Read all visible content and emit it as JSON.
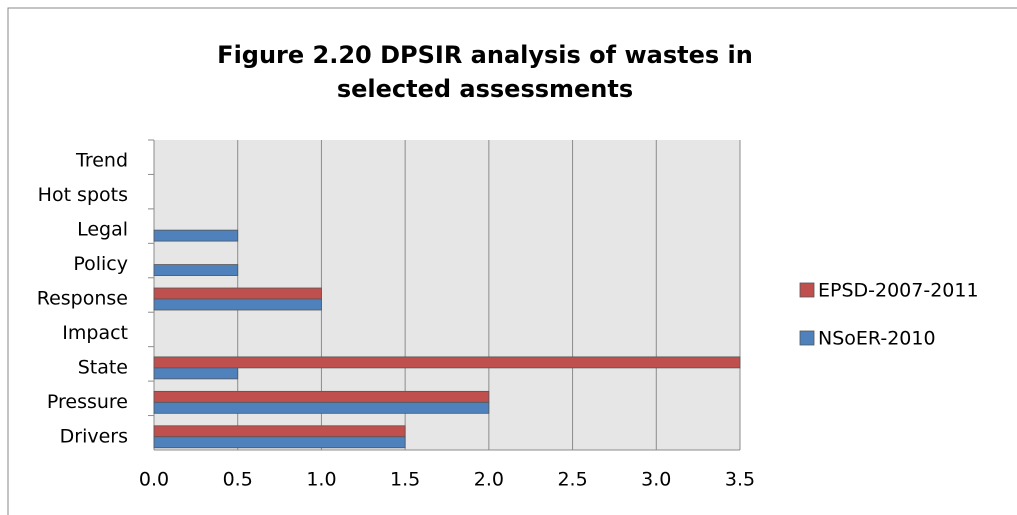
{
  "chart_data": {
    "type": "hbar",
    "title": "Figure 2.20 DPSIR analysis of wastes in selected assessments",
    "categories": [
      "Drivers",
      "Pressure",
      "State",
      "Impact",
      "Response",
      "Policy",
      "Legal",
      "Hot spots",
      "Trend"
    ],
    "series": [
      {
        "name": "EPSD-2007-2011",
        "color": "#c0504d",
        "values": [
          1.5,
          2.0,
          3.5,
          0,
          1.0,
          0,
          0,
          0,
          0
        ]
      },
      {
        "name": "NSoER-2010",
        "color": "#4f81bd",
        "values": [
          1.5,
          2.0,
          0.5,
          0,
          1.0,
          0.5,
          0.5,
          0,
          0
        ]
      }
    ],
    "xlim": [
      0,
      3.5
    ],
    "xticks": [
      {
        "value": 0,
        "label": "0.0"
      },
      {
        "value": 0.5,
        "label": "0.5"
      },
      {
        "value": 1,
        "label": "1.0"
      },
      {
        "value": 1.5,
        "label": "1.5"
      },
      {
        "value": 2,
        "label": "2.0"
      },
      {
        "value": 2.5,
        "label": "2.5"
      },
      {
        "value": 3,
        "label": "3.0"
      },
      {
        "value": 3.5,
        "label": "3.5"
      }
    ],
    "grid": true,
    "legend": "right"
  }
}
